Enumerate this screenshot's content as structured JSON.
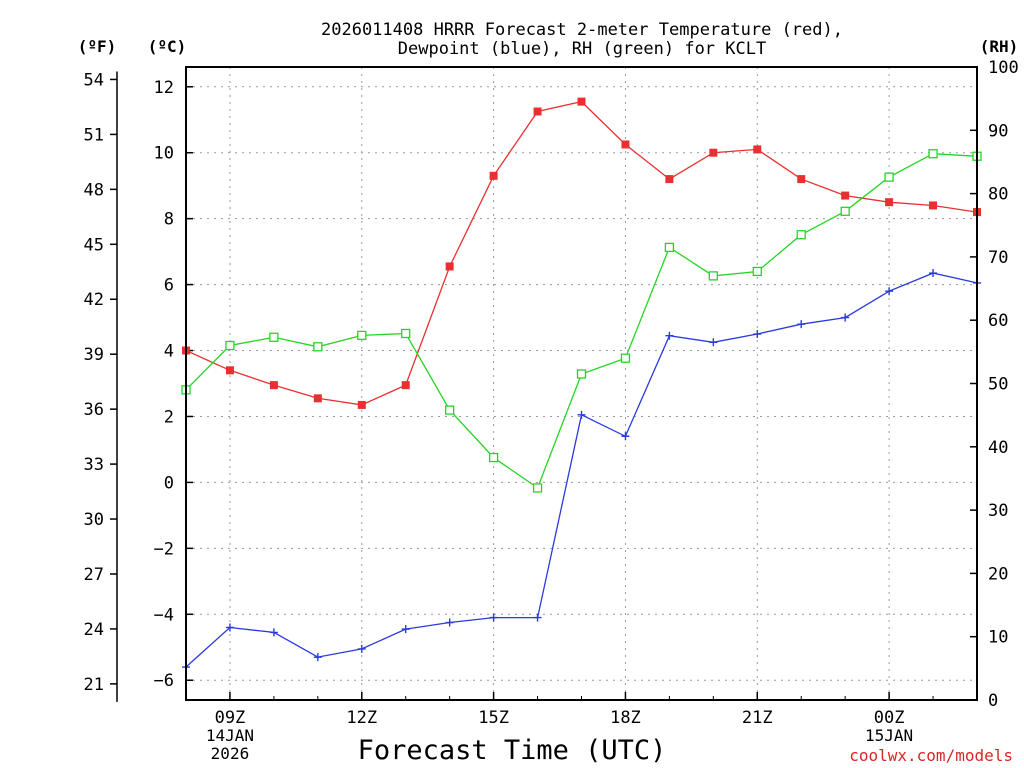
{
  "chart_data": {
    "type": "line",
    "title": [
      "2026011408 HRRR Forecast 2-meter Temperature (red),",
      "Dewpoint (blue), RH (green) for KCLT"
    ],
    "xlabel": "Forecast Time (UTC)",
    "credit": "coolwx.com/models",
    "units": {
      "fahrenheit": "(ºF)",
      "celsius": "(ºC)",
      "rh": "(RH)"
    },
    "x_hours": [
      8,
      9,
      10,
      11,
      12,
      13,
      14,
      15,
      16,
      17,
      18,
      19,
      20,
      21,
      22,
      23,
      24,
      25,
      26
    ],
    "xlim": [
      8,
      26
    ],
    "x_ticks": [
      {
        "x": 9,
        "label": "09Z",
        "date": [
          "14JAN",
          "2026"
        ]
      },
      {
        "x": 12,
        "label": "12Z",
        "date": []
      },
      {
        "x": 15,
        "label": "15Z",
        "date": []
      },
      {
        "x": 18,
        "label": "18Z",
        "date": []
      },
      {
        "x": 21,
        "label": "21Z",
        "date": []
      },
      {
        "x": 24,
        "label": "00Z",
        "date": [
          "15JAN"
        ]
      }
    ],
    "ylim_c": [
      -6.6,
      12.6
    ],
    "y_ticks_c": [
      -6,
      -4,
      -2,
      0,
      2,
      4,
      6,
      8,
      10,
      12
    ],
    "y_ticks_f": [
      21,
      24,
      27,
      30,
      33,
      36,
      39,
      42,
      45,
      48,
      51,
      54
    ],
    "y_ticks_rh": [
      0,
      10,
      20,
      30,
      40,
      50,
      60,
      70,
      80,
      90,
      100
    ],
    "rh_lim": [
      0,
      100
    ],
    "series": [
      {
        "name": "2-meter Temperature",
        "unit": "C",
        "color": "#e83030",
        "marker": "filled-square",
        "values": [
          4.0,
          3.4,
          2.95,
          2.55,
          2.35,
          2.95,
          6.55,
          9.3,
          11.25,
          11.55,
          10.25,
          9.2,
          10.0,
          10.1,
          9.2,
          8.7,
          8.5,
          8.4,
          8.2
        ]
      },
      {
        "name": "Dewpoint",
        "unit": "C",
        "color": "#2a3adf",
        "marker": "plus",
        "values": [
          -5.6,
          -4.4,
          -4.55,
          -5.3,
          -5.05,
          -4.45,
          -4.25,
          -4.1,
          -4.1,
          2.05,
          1.4,
          4.45,
          4.25,
          4.5,
          4.8,
          5.0,
          5.8,
          6.35,
          6.05
        ]
      },
      {
        "name": "RH",
        "unit": "%",
        "color": "#26d426",
        "marker": "open-square",
        "values": [
          49,
          56,
          57.3,
          55.8,
          57.6,
          57.9,
          45.8,
          38.3,
          33.5,
          51.5,
          54,
          71.5,
          67,
          67.7,
          73.5,
          77.2,
          82.6,
          86.3,
          85.9
        ]
      }
    ]
  }
}
